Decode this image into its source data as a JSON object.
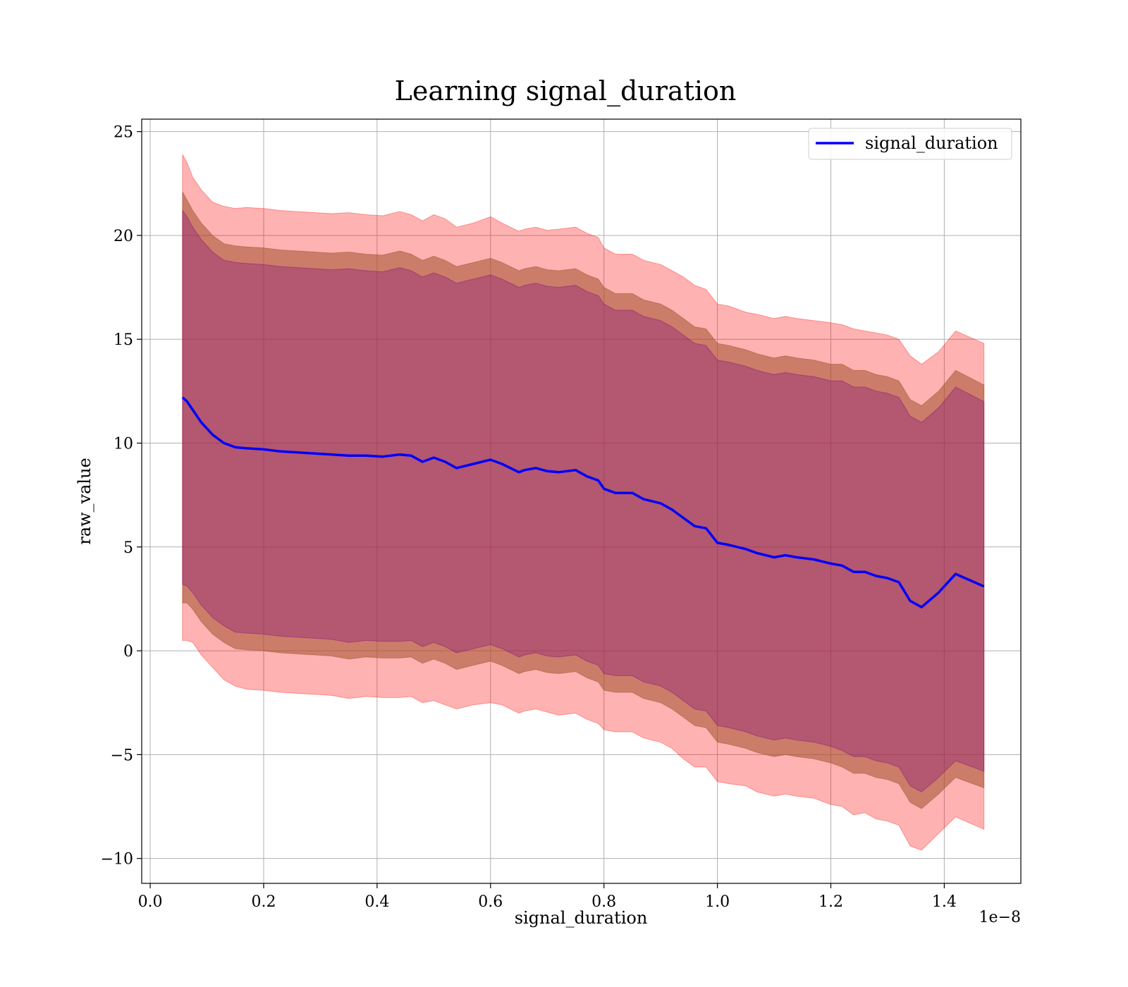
{
  "chart_data": {
    "type": "line",
    "title": "Learning signal_duration",
    "xlabel": "signal_duration",
    "ylabel": "raw_value",
    "x_offset_text": "1e−8",
    "xlim": [
      -0.015,
      1.535
    ],
    "ylim": [
      -11.2,
      25.6
    ],
    "xticks": [
      0.0,
      0.2,
      0.4,
      0.6,
      0.8,
      1.0,
      1.2,
      1.4
    ],
    "xtick_labels": [
      "0.0",
      "0.2",
      "0.4",
      "0.6",
      "0.8",
      "1.0",
      "1.2",
      "1.4"
    ],
    "yticks": [
      -10,
      -5,
      0,
      5,
      10,
      15,
      20,
      25
    ],
    "ytick_labels": [
      "−10",
      "−5",
      "0",
      "5",
      "10",
      "15",
      "20",
      "25"
    ],
    "grid": true,
    "legend": {
      "position": "top-right",
      "entries": [
        "signal_duration"
      ]
    },
    "colors": {
      "line": "#0000ff",
      "band_outer": "#ff0000",
      "band_mid": "#a0522d",
      "band_inner": "#800080"
    },
    "series": [
      {
        "name": "signal_duration",
        "x": [
          0.057,
          0.065,
          0.075,
          0.09,
          0.11,
          0.13,
          0.15,
          0.17,
          0.2,
          0.23,
          0.26,
          0.29,
          0.32,
          0.35,
          0.38,
          0.41,
          0.44,
          0.46,
          0.48,
          0.5,
          0.52,
          0.54,
          0.57,
          0.6,
          0.62,
          0.65,
          0.66,
          0.68,
          0.7,
          0.72,
          0.75,
          0.77,
          0.79,
          0.8,
          0.82,
          0.85,
          0.87,
          0.9,
          0.92,
          0.94,
          0.96,
          0.98,
          1.0,
          1.02,
          1.05,
          1.07,
          1.1,
          1.12,
          1.14,
          1.17,
          1.2,
          1.22,
          1.24,
          1.26,
          1.28,
          1.3,
          1.32,
          1.34,
          1.36,
          1.39,
          1.42,
          1.47
        ],
        "y": [
          12.2,
          12.0,
          11.6,
          11.0,
          10.4,
          10.0,
          9.8,
          9.75,
          9.7,
          9.6,
          9.55,
          9.5,
          9.45,
          9.4,
          9.4,
          9.35,
          9.45,
          9.4,
          9.1,
          9.3,
          9.1,
          8.8,
          9.0,
          9.2,
          9.0,
          8.6,
          8.7,
          8.8,
          8.65,
          8.6,
          8.7,
          8.4,
          8.2,
          7.8,
          7.6,
          7.6,
          7.3,
          7.1,
          6.8,
          6.4,
          6.0,
          5.9,
          5.2,
          5.1,
          4.9,
          4.7,
          4.5,
          4.6,
          4.5,
          4.4,
          4.2,
          4.1,
          3.8,
          3.8,
          3.6,
          3.5,
          3.3,
          2.4,
          2.1,
          2.8,
          3.7,
          3.1
        ]
      }
    ],
    "bands": {
      "x": [
        0.057,
        0.065,
        0.075,
        0.09,
        0.11,
        0.13,
        0.15,
        0.17,
        0.2,
        0.23,
        0.26,
        0.29,
        0.32,
        0.35,
        0.38,
        0.41,
        0.44,
        0.46,
        0.48,
        0.5,
        0.52,
        0.54,
        0.57,
        0.6,
        0.62,
        0.65,
        0.66,
        0.68,
        0.7,
        0.72,
        0.75,
        0.77,
        0.79,
        0.8,
        0.82,
        0.85,
        0.87,
        0.9,
        0.92,
        0.94,
        0.96,
        0.98,
        1.0,
        1.02,
        1.05,
        1.07,
        1.1,
        1.12,
        1.14,
        1.17,
        1.2,
        1.22,
        1.24,
        1.26,
        1.28,
        1.3,
        1.32,
        1.34,
        1.36,
        1.39,
        1.42,
        1.47
      ],
      "outer_halfwidth": [
        11.7,
        11.5,
        11.2,
        11.2,
        11.2,
        11.4,
        11.5,
        11.6,
        11.6,
        11.6,
        11.6,
        11.6,
        11.6,
        11.7,
        11.6,
        11.6,
        11.7,
        11.6,
        11.6,
        11.7,
        11.7,
        11.6,
        11.6,
        11.7,
        11.6,
        11.6,
        11.6,
        11.6,
        11.6,
        11.7,
        11.7,
        11.7,
        11.7,
        11.6,
        11.5,
        11.5,
        11.5,
        11.5,
        11.5,
        11.6,
        11.6,
        11.5,
        11.5,
        11.5,
        11.4,
        11.5,
        11.5,
        11.5,
        11.5,
        11.5,
        11.6,
        11.6,
        11.7,
        11.6,
        11.7,
        11.7,
        11.7,
        11.8,
        11.7,
        11.6,
        11.7,
        11.7
      ],
      "mid_halfwidth": [
        9.9,
        9.7,
        9.6,
        9.6,
        9.6,
        9.6,
        9.7,
        9.7,
        9.7,
        9.7,
        9.7,
        9.7,
        9.7,
        9.8,
        9.7,
        9.7,
        9.8,
        9.7,
        9.7,
        9.7,
        9.7,
        9.7,
        9.7,
        9.7,
        9.7,
        9.7,
        9.7,
        9.7,
        9.7,
        9.7,
        9.7,
        9.7,
        9.7,
        9.7,
        9.6,
        9.6,
        9.6,
        9.6,
        9.6,
        9.6,
        9.6,
        9.6,
        9.6,
        9.6,
        9.6,
        9.6,
        9.6,
        9.6,
        9.6,
        9.6,
        9.6,
        9.7,
        9.7,
        9.7,
        9.7,
        9.7,
        9.7,
        9.7,
        9.7,
        9.7,
        9.8,
        9.7
      ],
      "inner_halfwidth": [
        9.0,
        8.9,
        8.8,
        8.8,
        8.8,
        8.8,
        8.9,
        8.9,
        8.9,
        8.9,
        8.9,
        8.9,
        8.9,
        9.0,
        8.9,
        8.9,
        9.0,
        8.9,
        8.9,
        8.9,
        8.9,
        8.9,
        8.9,
        8.9,
        8.9,
        8.9,
        8.9,
        8.9,
        8.9,
        8.9,
        8.9,
        8.9,
        8.9,
        8.9,
        8.8,
        8.8,
        8.8,
        8.8,
        8.8,
        8.8,
        8.8,
        8.8,
        8.8,
        8.8,
        8.8,
        8.8,
        8.8,
        8.8,
        8.8,
        8.8,
        8.8,
        8.9,
        8.9,
        8.9,
        8.9,
        8.9,
        8.9,
        8.9,
        8.9,
        8.9,
        9.0,
        8.9
      ]
    }
  }
}
